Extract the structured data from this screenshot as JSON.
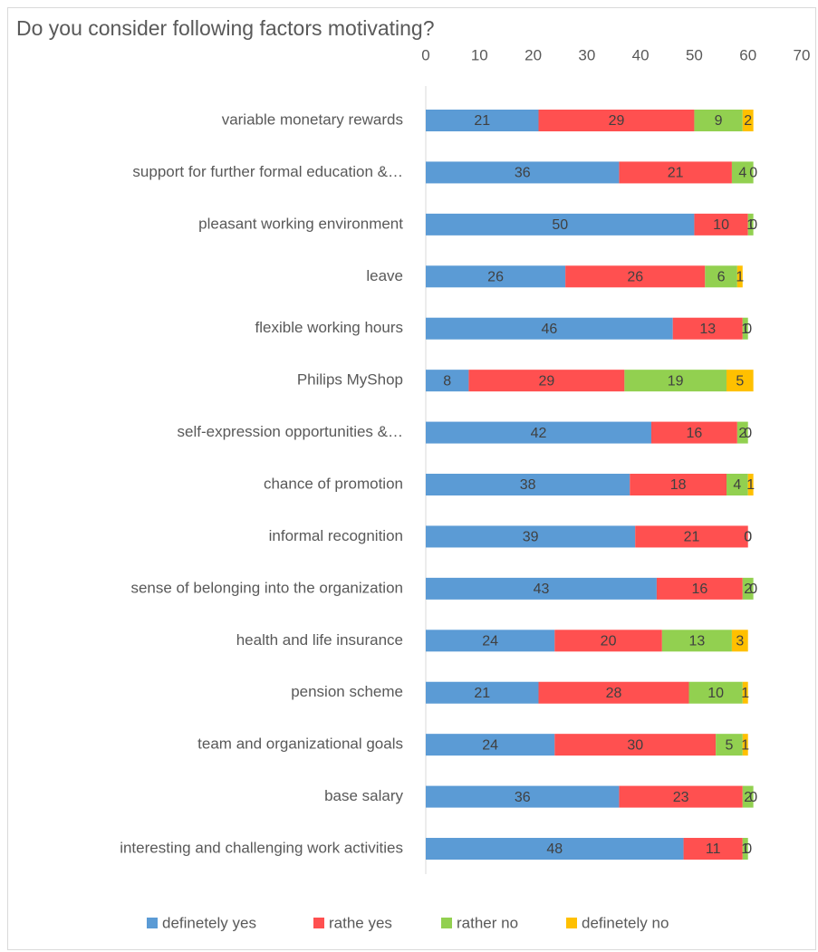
{
  "chart_data": {
    "type": "stacked-bar-horizontal",
    "title": "Do you consider following factors motivating?",
    "categories": [
      "variable monetary rewards",
      "support for further formal education &…",
      "pleasant working environment",
      "leave",
      "flexible working hours",
      "Philips MyShop",
      "self-expression opportunities &…",
      "chance of promotion",
      "informal recognition",
      "sense of belonging into the organization",
      "health and life insurance",
      "pension scheme",
      "team and organizational goals",
      "base salary",
      "interesting and challenging work activities"
    ],
    "series": [
      {
        "name": "definetely yes",
        "color": "#5b9bd5",
        "values": [
          21,
          36,
          50,
          26,
          46,
          8,
          42,
          38,
          39,
          43,
          24,
          21,
          24,
          36,
          48
        ]
      },
      {
        "name": "rathe yes",
        "color": "#ff5050",
        "values": [
          29,
          21,
          10,
          26,
          13,
          29,
          16,
          18,
          21,
          16,
          20,
          28,
          30,
          23,
          11
        ]
      },
      {
        "name": "rather no",
        "color": "#92d050",
        "values": [
          9,
          4,
          1,
          6,
          1,
          19,
          2,
          4,
          0,
          2,
          13,
          10,
          5,
          2,
          1
        ]
      },
      {
        "name": "definetely no",
        "color": "#ffc000",
        "values": [
          2,
          0,
          0,
          1,
          0,
          5,
          0,
          1,
          0,
          0,
          3,
          1,
          1,
          0,
          0
        ]
      }
    ],
    "xlim": [
      0,
      70
    ],
    "xticks": [
      0,
      10,
      20,
      30,
      40,
      50,
      60,
      70
    ],
    "legend": "bottom"
  }
}
